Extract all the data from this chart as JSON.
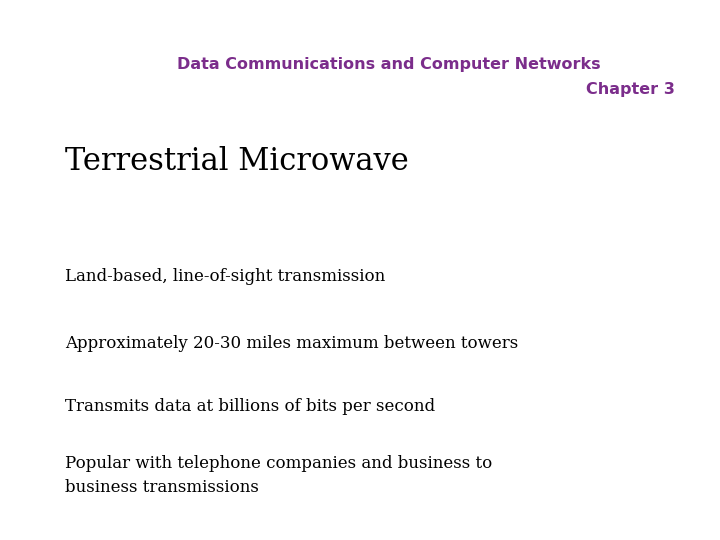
{
  "background_color": "#ffffff",
  "header_line1": "Data Communications and Computer Networks",
  "header_line2": "Chapter 3",
  "header_color": "#7B2D8B",
  "header_fontsize": 11.5,
  "title": "Terrestrial Microwave",
  "title_color": "#000000",
  "title_fontsize": 22,
  "bullet_color": "#000000",
  "bullet_fontsize": 12,
  "bullets": [
    "Land-based, line-of-sight transmission",
    "Approximately 20-30 miles maximum between towers",
    "Transmits data at billions of bits per second",
    "Popular with telephone companies and business to\nbusiness transmissions"
  ],
  "fig_width": 7.2,
  "fig_height": 5.4,
  "dpi": 100
}
